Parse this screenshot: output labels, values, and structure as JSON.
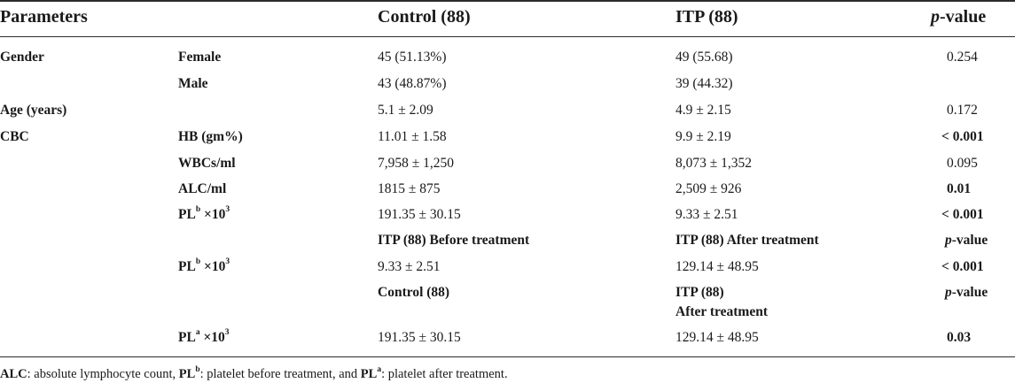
{
  "header": {
    "parameters": "Parameters",
    "control": "Control (88)",
    "itp": "ITP (88)",
    "p_italic": "p",
    "p_rest": "-value"
  },
  "rows": [
    {
      "param": "Gender",
      "sub": "Female",
      "control": "45 (51.13%)",
      "itp": "49 (55.68)",
      "p": "0.254"
    },
    {
      "param": "",
      "sub": "Male",
      "control": "43 (48.87%)",
      "itp": "39 (44.32)",
      "p": ""
    },
    {
      "param": "Age (years)",
      "sub": "",
      "control": "5.1 ± 2.09",
      "itp": "4.9 ± 2.15",
      "p": "0.172"
    },
    {
      "param": "CBC",
      "sub": "HB (gm%)",
      "control": "11.01 ± 1.58",
      "itp": "9.9 ± 2.19",
      "p": "< 0.001"
    },
    {
      "param": "",
      "sub": "WBCs/ml",
      "control": "7,958 ± 1,250",
      "itp": "8,073 ± 1,352",
      "p": "0.095"
    },
    {
      "param": "",
      "sub": "ALC/ml",
      "control": "1815 ± 875",
      "itp": "2,509 ± 926",
      "p": "0.01"
    },
    {
      "param": "",
      "sub_base": "PL",
      "sub_sup": "b",
      "sub_tail": " ×10",
      "sub_tail_sup": "3",
      "control": "191.35 ± 30.15",
      "itp": "9.33 ± 2.51",
      "p": "< 0.001"
    }
  ],
  "subheader1": {
    "col3": "ITP (88) Before treatment",
    "col4": "ITP (88) After treatment",
    "p_italic": "p",
    "p_rest": "-value"
  },
  "row_plb2": {
    "sub_base": "PL",
    "sub_sup": "b",
    "sub_tail": " ×10",
    "sub_tail_sup": "3",
    "control": "9.33 ± 2.51",
    "itp": "129.14 ± 48.95",
    "p": "< 0.001"
  },
  "subheader2": {
    "col3": "Control (88)",
    "col4_line1": "ITP (88)",
    "col4_line2": "After treatment",
    "p_italic": "p",
    "p_rest": "-value"
  },
  "row_pla": {
    "sub_base": "PL",
    "sub_sup": "a",
    "sub_tail": " ×10",
    "sub_tail_sup": "3",
    "control": "191.35 ± 30.15",
    "itp": "129.14 ± 48.95",
    "p": "0.03"
  },
  "footnote": {
    "alc": "ALC",
    "alc_text": ": absolute lymphocyte count, ",
    "plb_base": "PL",
    "plb_sup": "b",
    "plb_text": ": platelet before treatment, and ",
    "pla_base": "PL",
    "pla_sup": "a",
    "pla_text": ": platelet after treatment."
  }
}
